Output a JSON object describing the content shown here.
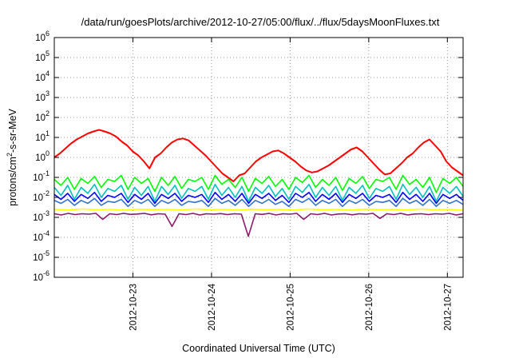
{
  "chart_data": {
    "type": "line",
    "title": "/data/run/goesPlots/archive/2012-10-27/05:00/flux/../flux/5daysMoonFluxes.txt",
    "xlabel": "Coordinated Universal Time (UTC)",
    "ylabel": "protons/cm2-s-sr-MeV",
    "ylabel_parts": {
      "before": "protons/cm",
      "sup": "2",
      "after": "-s-sr-MeV"
    },
    "yscale": "log",
    "ylim": [
      -6,
      6
    ],
    "y_ticks": [
      {
        "base": "10",
        "exp": "6"
      },
      {
        "base": "10",
        "exp": "5"
      },
      {
        "base": "10",
        "exp": "4"
      },
      {
        "base": "10",
        "exp": "3"
      },
      {
        "base": "10",
        "exp": "2"
      },
      {
        "base": "10",
        "exp": "1"
      },
      {
        "base": "10",
        "exp": "0"
      },
      {
        "base": "10",
        "exp": "-1"
      },
      {
        "base": "10",
        "exp": "-2"
      },
      {
        "base": "10",
        "exp": "-3"
      },
      {
        "base": "10",
        "exp": "-4"
      },
      {
        "base": "10",
        "exp": "-5"
      },
      {
        "base": "10",
        "exp": "-6"
      }
    ],
    "xlim_days": [
      0,
      5.2
    ],
    "x_ticks": [
      "2012-10-23",
      "2012-10-24",
      "2012-10-25",
      "2012-10-26",
      "2012-10-27"
    ],
    "x_tick_days": [
      1,
      2,
      3,
      4,
      5
    ],
    "grid": true,
    "series": [
      {
        "color": "#ff0000",
        "log10_values": [
          0.0,
          0.2,
          0.45,
          0.7,
          0.9,
          1.05,
          1.2,
          1.3,
          1.38,
          1.3,
          1.2,
          1.05,
          0.8,
          0.6,
          0.3,
          0.1,
          -0.2,
          -0.55,
          0.0,
          0.2,
          0.5,
          0.75,
          0.9,
          0.95,
          0.85,
          0.6,
          0.35,
          0.1,
          -0.2,
          -0.5,
          -0.8,
          -1.0,
          -1.2,
          -0.9,
          -0.8,
          -0.5,
          -0.2,
          0.0,
          0.15,
          0.3,
          0.35,
          0.2,
          0.0,
          -0.2,
          -0.45,
          -0.65,
          -0.75,
          -0.7,
          -0.55,
          -0.4,
          -0.2,
          0.0,
          0.2,
          0.4,
          0.5,
          0.3,
          0.0,
          -0.3,
          -0.6,
          -0.85,
          -0.8,
          -0.55,
          -0.3,
          0.0,
          0.2,
          0.5,
          0.75,
          0.9,
          0.6,
          0.3,
          -0.2,
          -0.5,
          -0.7,
          -0.9
        ]
      },
      {
        "color": "#00ff00",
        "log10_values": [
          -1.1,
          -1.4,
          -1.0,
          -1.6,
          -1.05,
          -1.3,
          -0.95,
          -1.5,
          -1.1,
          -1.2,
          -0.9,
          -1.6,
          -1.0,
          -1.3,
          -1.05,
          -1.7,
          -1.0,
          -1.4,
          -0.95,
          -1.55,
          -1.1,
          -1.2,
          -1.0,
          -1.6,
          -0.9,
          -1.35,
          -1.1,
          -1.5,
          -1.0,
          -1.7,
          -1.05,
          -1.3,
          -0.95,
          -1.45,
          -1.1,
          -1.6,
          -1.0,
          -1.25,
          -0.9,
          -1.5,
          -1.1,
          -1.4,
          -1.0,
          -1.65,
          -1.05,
          -1.3,
          -0.95,
          -1.55,
          -1.1,
          -1.2,
          -1.0,
          -1.6,
          -0.9,
          -1.35,
          -1.1,
          -1.5,
          -1.0,
          -1.75,
          -1.05,
          -1.3,
          -1.0,
          -1.45
        ]
      },
      {
        "color": "#00c0c0",
        "log10_values": [
          -1.5,
          -1.9,
          -1.4,
          -2.1,
          -1.5,
          -1.8,
          -1.35,
          -2.0,
          -1.55,
          -1.7,
          -1.4,
          -2.1,
          -1.5,
          -1.9,
          -1.45,
          -2.2,
          -1.45,
          -1.85,
          -1.4,
          -2.05,
          -1.55,
          -1.7,
          -1.45,
          -2.1,
          -1.35,
          -1.9,
          -1.5,
          -2.0,
          -1.45,
          -2.2,
          -1.5,
          -1.8,
          -1.4,
          -1.95,
          -1.55,
          -2.1,
          -1.45,
          -1.75,
          -1.35,
          -2.0,
          -1.5,
          -1.9,
          -1.45,
          -2.15,
          -1.5,
          -1.8,
          -1.4,
          -2.05,
          -1.55,
          -1.7,
          -1.45,
          -2.1,
          -1.35,
          -1.85,
          -1.5,
          -2.0,
          -1.45,
          -2.2,
          -1.5,
          -1.8,
          -1.45,
          -1.95
        ]
      },
      {
        "color": "#0000ff",
        "log10_values": [
          -1.85,
          -2.1,
          -1.8,
          -2.2,
          -1.85,
          -2.05,
          -1.75,
          -2.2,
          -1.9,
          -2.0,
          -1.8,
          -2.25,
          -1.85,
          -2.1,
          -1.8,
          -2.3,
          -1.85,
          -2.05,
          -1.8,
          -2.2,
          -1.9,
          -2.0,
          -1.85,
          -2.25,
          -1.75,
          -2.1,
          -1.85,
          -2.2,
          -1.8,
          -2.3,
          -1.85,
          -2.05,
          -1.8,
          -2.15,
          -1.9,
          -2.25,
          -1.8,
          -2.0,
          -1.75,
          -2.2,
          -1.85,
          -2.1,
          -1.8,
          -2.25,
          -1.85,
          -2.05,
          -1.8,
          -2.2,
          -1.9,
          -2.0,
          -1.85,
          -2.25,
          -1.75,
          -2.1,
          -1.85,
          -2.2,
          -1.8,
          -2.3,
          -1.85,
          -2.05,
          -1.85,
          -2.15
        ]
      },
      {
        "color": "#3070d0",
        "log10_values": [
          -2.15,
          -2.3,
          -2.1,
          -2.4,
          -2.15,
          -2.3,
          -2.05,
          -2.4,
          -2.2,
          -2.25,
          -2.1,
          -2.45,
          -2.15,
          -2.3,
          -2.1,
          -2.45,
          -2.15,
          -2.3,
          -2.1,
          -2.4,
          -2.2,
          -2.25,
          -2.15,
          -2.45,
          -2.05,
          -2.3,
          -2.15,
          -2.4,
          -2.1,
          -2.45,
          -2.15,
          -2.3,
          -2.1,
          -2.35,
          -2.2,
          -2.45,
          -2.1,
          -2.25,
          -2.05,
          -2.4,
          -2.15,
          -2.3,
          -2.1,
          -2.45,
          -2.15,
          -2.3,
          -2.1,
          -2.4,
          -2.2,
          -2.25,
          -2.15,
          -2.45,
          -2.05,
          -2.3,
          -2.15,
          -2.4,
          -2.1,
          -2.45,
          -2.15,
          -2.3,
          -2.15,
          -2.35
        ]
      },
      {
        "color": "#ffff00",
        "log10_values": [
          -2.6,
          -2.63,
          -2.58,
          -2.62,
          -2.6,
          -2.64,
          -2.59,
          -2.61,
          -2.6,
          -2.63,
          -2.58,
          -2.62,
          -2.6,
          -2.64,
          -2.59,
          -2.61,
          -2.6,
          -2.63,
          -2.58,
          -2.62,
          -2.6,
          -2.64,
          -2.59,
          -2.61,
          -2.6,
          -2.63,
          -2.58,
          -2.62,
          -2.6,
          -2.64
        ]
      },
      {
        "color": "#8b1a6b",
        "log10_values": [
          -2.82,
          -2.88,
          -2.8,
          -2.86,
          -2.82,
          -2.84,
          -2.8,
          -3.1,
          -2.82,
          -2.86,
          -2.8,
          -2.85,
          -2.83,
          -2.8,
          -2.87,
          -2.82,
          -2.84,
          -3.45,
          -2.82,
          -2.86,
          -2.8,
          -2.88,
          -2.82,
          -2.84,
          -2.81,
          -2.86,
          -2.82,
          -2.84,
          -3.95,
          -2.82,
          -2.85,
          -2.8,
          -2.88,
          -2.82,
          -2.84,
          -2.8,
          -3.1,
          -2.82,
          -2.86,
          -2.8,
          -2.88,
          -2.83,
          -2.82,
          -2.87,
          -2.82,
          -2.84,
          -2.8,
          -3.05,
          -2.82,
          -2.86,
          -2.8,
          -2.88,
          -2.83,
          -2.82,
          -2.86,
          -2.82,
          -2.84,
          -2.8,
          -2.88,
          -2.82
        ]
      }
    ]
  }
}
